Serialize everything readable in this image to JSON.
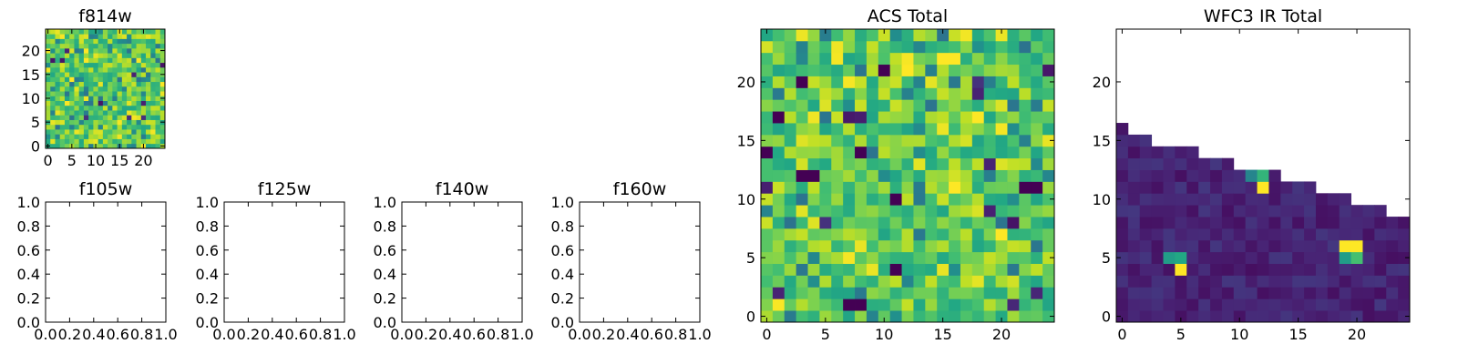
{
  "figure": {
    "background": "#ffffff",
    "colormap": "viridis"
  },
  "chart_data": [
    {
      "id": "f814w",
      "type": "heatmap",
      "title": "f814w",
      "xlim": [
        -0.5,
        24.5
      ],
      "ylim": [
        -0.5,
        24.5
      ],
      "xticks": [
        0,
        5,
        10,
        15,
        20
      ],
      "yticks": [
        0,
        5,
        10,
        15,
        20
      ],
      "xticklabels": [
        "0",
        "5",
        "10",
        "15",
        "20"
      ],
      "yticklabels": [
        "0",
        "5",
        "10",
        "15",
        "20"
      ],
      "grid_size": [
        25,
        25
      ],
      "value_pattern": "noise-high",
      "seed": 814
    },
    {
      "id": "f105w",
      "type": "heatmap",
      "title": "f105w",
      "empty": true,
      "xlim": [
        0,
        1
      ],
      "ylim": [
        0,
        1
      ],
      "xticks": [
        0,
        0.2,
        0.4,
        0.6,
        0.8,
        1.0
      ],
      "yticks": [
        0,
        0.2,
        0.4,
        0.6,
        0.8,
        1.0
      ],
      "xticklabels": [
        "0.0",
        "0.2",
        "0.4",
        "0.6",
        "0.8",
        "1.0"
      ],
      "yticklabels": [
        "0.0",
        "0.2",
        "0.4",
        "0.6",
        "0.8",
        "1.0"
      ]
    },
    {
      "id": "f125w",
      "type": "heatmap",
      "title": "f125w",
      "empty": true,
      "xlim": [
        0,
        1
      ],
      "ylim": [
        0,
        1
      ],
      "xticks": [
        0,
        0.2,
        0.4,
        0.6,
        0.8,
        1.0
      ],
      "yticks": [
        0,
        0.2,
        0.4,
        0.6,
        0.8,
        1.0
      ],
      "xticklabels": [
        "0.0",
        "0.2",
        "0.4",
        "0.6",
        "0.8",
        "1.0"
      ],
      "yticklabels": [
        "0.0",
        "0.2",
        "0.4",
        "0.6",
        "0.8",
        "1.0"
      ]
    },
    {
      "id": "f140w",
      "type": "heatmap",
      "title": "f140w",
      "empty": true,
      "xlim": [
        0,
        1
      ],
      "ylim": [
        0,
        1
      ],
      "xticks": [
        0,
        0.2,
        0.4,
        0.6,
        0.8,
        1.0
      ],
      "yticks": [
        0,
        0.2,
        0.4,
        0.6,
        0.8,
        1.0
      ],
      "xticklabels": [
        "0.0",
        "0.2",
        "0.4",
        "0.6",
        "0.8",
        "1.0"
      ],
      "yticklabels": [
        "0.0",
        "0.2",
        "0.4",
        "0.6",
        "0.8",
        "1.0"
      ]
    },
    {
      "id": "f160w",
      "type": "heatmap",
      "title": "f160w",
      "empty": true,
      "xlim": [
        0,
        1
      ],
      "ylim": [
        0,
        1
      ],
      "xticks": [
        0,
        0.2,
        0.4,
        0.6,
        0.8,
        1.0
      ],
      "yticks": [
        0,
        0.2,
        0.4,
        0.6,
        0.8,
        1.0
      ],
      "xticklabels": [
        "0.0",
        "0.2",
        "0.4",
        "0.6",
        "0.8",
        "1.0"
      ],
      "yticklabels": [
        "0.0",
        "0.2",
        "0.4",
        "0.6",
        "0.8",
        "1.0"
      ]
    },
    {
      "id": "acs_total",
      "type": "heatmap",
      "title": "ACS Total",
      "xlim": [
        -0.5,
        24.5
      ],
      "ylim": [
        -0.5,
        24.5
      ],
      "xticks": [
        0,
        5,
        10,
        15,
        20
      ],
      "yticks": [
        0,
        5,
        10,
        15,
        20
      ],
      "xticklabels": [
        "0",
        "5",
        "10",
        "15",
        "20"
      ],
      "yticklabels": [
        "0",
        "5",
        "10",
        "15",
        "20"
      ],
      "grid_size": [
        25,
        25
      ],
      "value_pattern": "noise-high",
      "seed": 2024,
      "hot_cells": [
        [
          15,
          22
        ],
        [
          16,
          22
        ],
        [
          12,
          21
        ],
        [
          16,
          11
        ],
        [
          20,
          7
        ]
      ],
      "cold_cells": [
        [
          10,
          21
        ],
        [
          3,
          20
        ],
        [
          1,
          17
        ],
        [
          0,
          14
        ],
        [
          8,
          14
        ],
        [
          11,
          10
        ],
        [
          22,
          11
        ],
        [
          23,
          11
        ],
        [
          3,
          12
        ],
        [
          4,
          12
        ],
        [
          11,
          4
        ],
        [
          7,
          1
        ],
        [
          8,
          1
        ]
      ]
    },
    {
      "id": "wfc3_ir_total",
      "type": "heatmap",
      "title": "WFC3 IR Total",
      "xlim": [
        -0.5,
        24.5
      ],
      "ylim": [
        -0.5,
        24.5
      ],
      "xticks": [
        0,
        5,
        10,
        15,
        20
      ],
      "yticks": [
        0,
        5,
        10,
        15,
        20
      ],
      "xticklabels": [
        "0",
        "5",
        "10",
        "15",
        "20"
      ],
      "yticklabels": [
        "0",
        "5",
        "10",
        "15",
        "20"
      ],
      "grid_size": [
        25,
        25
      ],
      "value_pattern": "low-with-sources",
      "seed": 140,
      "column_top_rows": [
        16,
        15,
        15,
        14,
        14,
        14,
        14,
        13,
        13,
        13,
        12,
        12,
        12,
        12,
        11,
        11,
        11,
        10,
        10,
        10,
        9,
        9,
        9,
        8,
        8
      ],
      "sources": [
        {
          "x": 5,
          "y": 4,
          "value": 1.0
        },
        {
          "x": 4,
          "y": 5,
          "value": 0.55
        },
        {
          "x": 5,
          "y": 5,
          "value": 0.6
        },
        {
          "x": 12,
          "y": 11,
          "value": 1.0
        },
        {
          "x": 12,
          "y": 12,
          "value": 0.65
        },
        {
          "x": 11,
          "y": 12,
          "value": 0.45
        },
        {
          "x": 19,
          "y": 6,
          "value": 1.0
        },
        {
          "x": 20,
          "y": 6,
          "value": 1.0
        },
        {
          "x": 20,
          "y": 5,
          "value": 0.7
        },
        {
          "x": 19,
          "y": 5,
          "value": 0.55
        }
      ]
    }
  ]
}
